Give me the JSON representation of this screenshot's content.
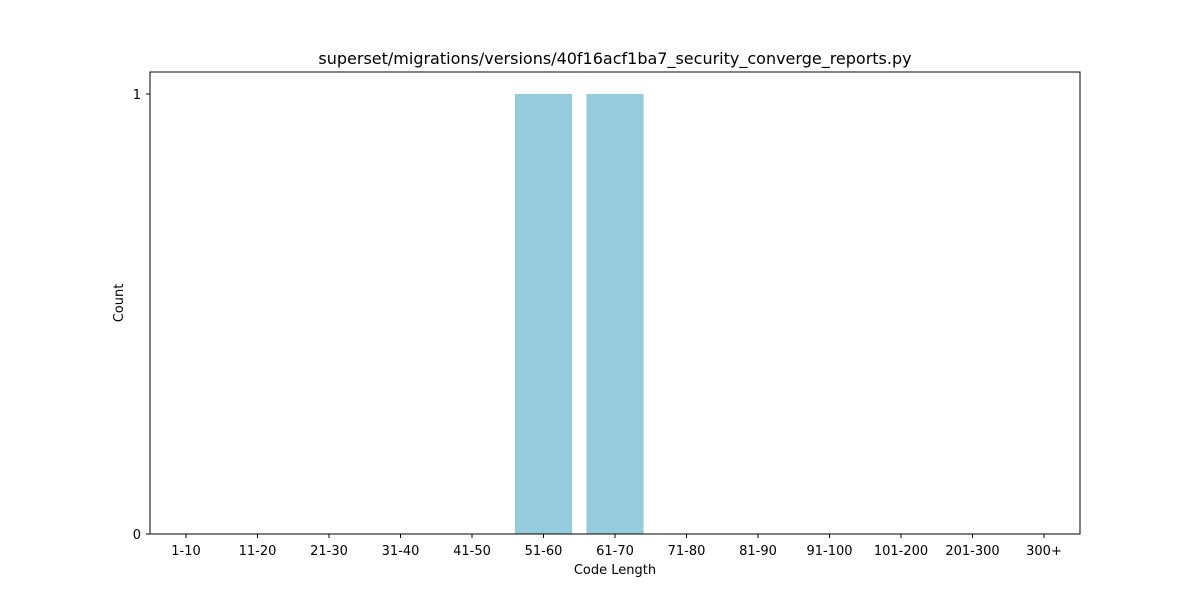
{
  "chart_data": {
    "type": "bar",
    "title": "superset/migrations/versions/40f16acf1ba7_security_converge_reports.py",
    "xlabel": "Code Length",
    "ylabel": "Count",
    "categories": [
      "1-10",
      "11-20",
      "21-30",
      "31-40",
      "41-50",
      "51-60",
      "61-70",
      "71-80",
      "81-90",
      "91-100",
      "101-200",
      "201-300",
      "300+"
    ],
    "values": [
      0,
      0,
      0,
      0,
      0,
      1,
      1,
      0,
      0,
      0,
      0,
      0,
      0
    ],
    "ylim": [
      0,
      1
    ],
    "yticks": [
      0,
      1
    ],
    "bar_color": "#96cadd",
    "grid": false,
    "legend": "none"
  }
}
